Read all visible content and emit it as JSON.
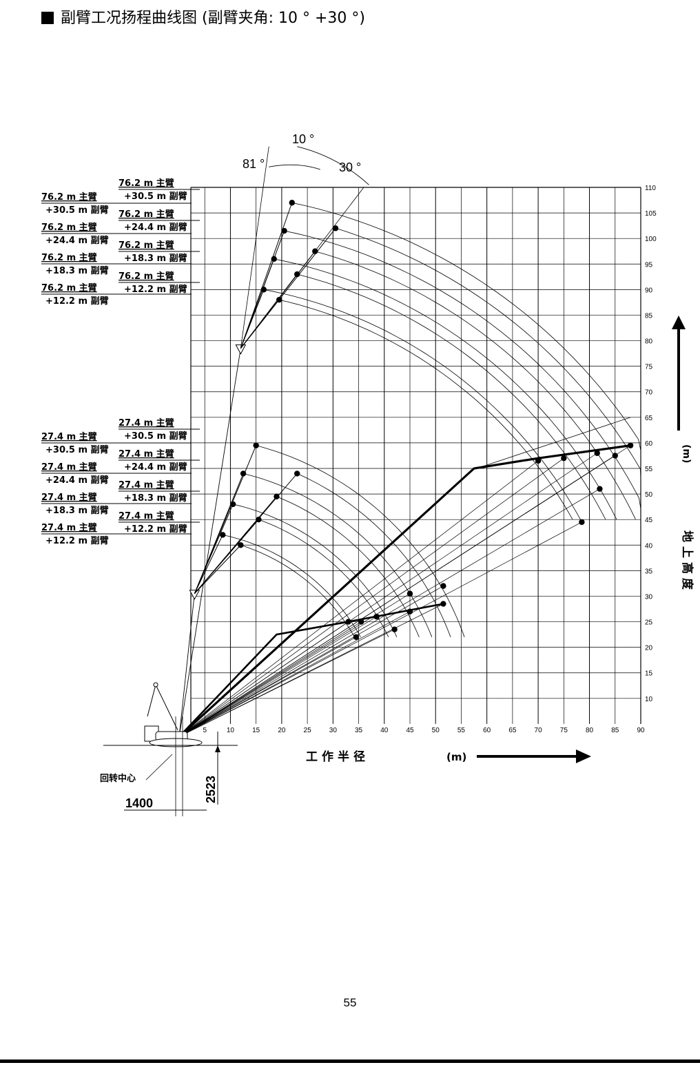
{
  "title": "副臂工况扬程曲线图 (副臂夹角: 10 ° +30 °)",
  "page_number": "55",
  "chart_data": {
    "type": "line",
    "xlabel": "工作半径",
    "xunit": "(m)",
    "ylabel": "地上高度",
    "yunit": "(m)",
    "xlim": [
      0,
      90
    ],
    "ylim": [
      0,
      110
    ],
    "x_ticks": [
      5,
      10,
      15,
      20,
      25,
      30,
      35,
      40,
      45,
      50,
      55,
      60,
      65,
      70,
      75,
      80,
      85,
      90
    ],
    "y_ticks": [
      10,
      15,
      20,
      25,
      30,
      35,
      40,
      45,
      50,
      55,
      60,
      65,
      70,
      75,
      80,
      85,
      90,
      95,
      100,
      105,
      110
    ],
    "grid": true,
    "offset_angle_labels": [
      "81 °",
      "10 °",
      "30 °"
    ],
    "slewing_center_label": "回转中心",
    "dimensions": [
      "1400",
      "2523"
    ],
    "boom_tip_points": [
      {
        "x": 12,
        "y": 78.5
      },
      {
        "x": 3,
        "y": 30.5
      }
    ],
    "configs": [
      {
        "label": [
          "76.2 m 主臂",
          "+30.5 m 副臂"
        ],
        "x10": 22,
        "y10": 107,
        "x30": 30.5,
        "y30": 102
      },
      {
        "label": [
          "76.2 m 主臂",
          "+24.4 m 副臂"
        ],
        "x10": 20.5,
        "y10": 101.5,
        "x30": 26.5,
        "y30": 97.5
      },
      {
        "label": [
          "76.2 m 主臂",
          "+18.3 m 副臂"
        ],
        "x10": 18.5,
        "y10": 96,
        "x30": 23,
        "y30": 93
      },
      {
        "label": [
          "76.2 m 主臂",
          "+12.2 m 副臂"
        ],
        "x10": 16.5,
        "y10": 90,
        "x30": 19.5,
        "y30": 88
      },
      {
        "label": [
          "27.4 m 主臂",
          "+30.5 m 副臂"
        ],
        "x10": 15,
        "y10": 59.5,
        "x30": 23,
        "y30": 54
      },
      {
        "label": [
          "27.4 m 主臂",
          "+24.4 m 副臂"
        ],
        "x10": 12.5,
        "y10": 54,
        "x30": 19,
        "y30": 49.5
      },
      {
        "label": [
          "27.4 m 主臂",
          "+18.3 m 副臂"
        ],
        "x10": 10.5,
        "y10": 48,
        "x30": 15.5,
        "y30": 45
      },
      {
        "label": [
          "27.4 m 主臂",
          "+12.2 m 副臂"
        ],
        "x10": 8.5,
        "y10": 42,
        "x30": 12,
        "y30": 40
      }
    ],
    "radial_points": [
      {
        "x": 88,
        "y": 59.5
      },
      {
        "x": 85,
        "y": 57.5
      },
      {
        "x": 81.5,
        "y": 58
      },
      {
        "x": 82,
        "y": 51
      },
      {
        "x": 78.5,
        "y": 44.5
      },
      {
        "x": 75,
        "y": 57
      },
      {
        "x": 70,
        "y": 56.5
      },
      {
        "x": 51.5,
        "y": 32
      },
      {
        "x": 51.5,
        "y": 28.5
      },
      {
        "x": 45,
        "y": 30.5
      },
      {
        "x": 45,
        "y": 27
      },
      {
        "x": 42,
        "y": 23.5
      },
      {
        "x": 38.5,
        "y": 26
      },
      {
        "x": 35.5,
        "y": 25
      },
      {
        "x": 33,
        "y": 25
      },
      {
        "x": 34.5,
        "y": 22
      }
    ]
  }
}
